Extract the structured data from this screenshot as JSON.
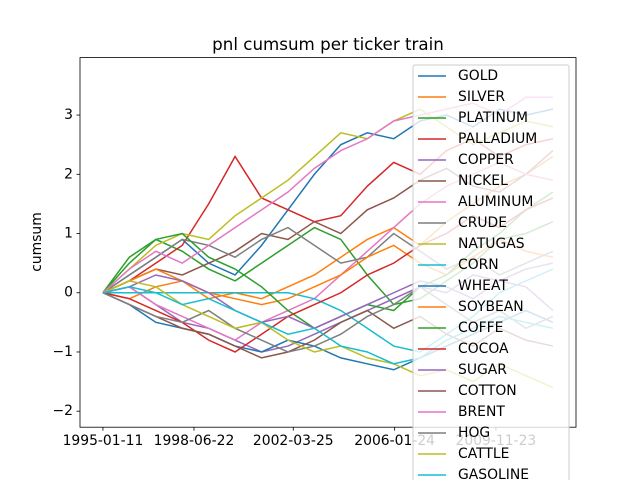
{
  "chart_data": {
    "type": "line",
    "title": "pnl cumsum per ticker train",
    "ylabel": "cumsum",
    "x": [
      "1995-01-11",
      "1996-01-11",
      "1997-01-11",
      "1998-01-11",
      "1999-01-11",
      "2000-01-11",
      "2001-01-11",
      "2002-01-11",
      "2003-01-11",
      "2004-01-11",
      "2005-01-11",
      "2006-01-11",
      "2007-01-11",
      "2008-01-11",
      "2009-01-11",
      "2010-01-11",
      "2011-01-11",
      "2012-01-20"
    ],
    "xlim": [
      "1994-02-28",
      "2012-12-04"
    ],
    "xticks": [
      "1995-01-11",
      "1998-06-22",
      "2002-03-25",
      "2006-01-24",
      "2009-11-23"
    ],
    "ylim": [
      -2.27,
      3.97
    ],
    "yticks": [
      {
        "value": -2,
        "label": "−2"
      },
      {
        "value": -1,
        "label": "−1"
      },
      0,
      1,
      2,
      3
    ],
    "legend": "upper right",
    "series": [
      {
        "name": "GOLD",
        "color": "#1f77b4",
        "values": [
          0,
          0.3,
          0.6,
          0.9,
          0.5,
          0.3,
          0.8,
          1.4,
          2.0,
          2.5,
          2.7,
          2.6,
          2.9,
          3.0,
          2.8,
          3.1,
          3.0,
          3.1
        ]
      },
      {
        "name": "SILVER",
        "color": "#ff7f0e",
        "values": [
          0,
          -0.1,
          0.1,
          0.2,
          -0.1,
          0.0,
          -0.1,
          0.1,
          0.3,
          0.6,
          0.9,
          1.1,
          0.8,
          1.2,
          1.5,
          1.8,
          2.0,
          2.3
        ]
      },
      {
        "name": "PLATINUM",
        "color": "#2ca02c",
        "values": [
          0,
          0.5,
          0.9,
          0.7,
          0.4,
          0.2,
          0.5,
          0.8,
          1.1,
          0.9,
          0.3,
          -0.2,
          -0.1,
          0.2,
          0.5,
          0.9,
          1.0,
          1.2
        ]
      },
      {
        "name": "PALLADIUM",
        "color": "#d62728",
        "values": [
          0,
          0.2,
          0.5,
          0.8,
          1.5,
          2.3,
          1.6,
          1.4,
          1.2,
          1.3,
          1.8,
          2.2,
          2.0,
          2.4,
          2.6,
          2.3,
          2.5,
          2.6
        ]
      },
      {
        "name": "COPPER",
        "color": "#9467bd",
        "values": [
          0,
          0.1,
          -0.2,
          -0.5,
          -0.6,
          -0.8,
          -1.0,
          -0.9,
          -0.7,
          -0.5,
          -0.3,
          -0.1,
          0.1,
          0.0,
          0.3,
          0.2,
          0.4,
          0.5
        ]
      },
      {
        "name": "NICKEL",
        "color": "#8c564b",
        "values": [
          0,
          0.2,
          0.4,
          0.3,
          0.5,
          0.7,
          1.0,
          0.9,
          1.2,
          1.0,
          1.4,
          1.6,
          1.9,
          2.1,
          1.8,
          1.7,
          2.0,
          2.4
        ]
      },
      {
        "name": "ALUMINUM",
        "color": "#e377c2",
        "values": [
          0,
          0.1,
          -0.2,
          -0.4,
          -0.6,
          -0.8,
          -0.5,
          -0.3,
          -0.1,
          0.3,
          0.7,
          1.1,
          1.5,
          1.8,
          2.0,
          2.2,
          2.0,
          1.9
        ]
      },
      {
        "name": "CRUDE",
        "color": "#7f7f7f",
        "values": [
          0,
          0.3,
          0.6,
          0.9,
          0.8,
          0.6,
          0.9,
          1.1,
          0.8,
          0.5,
          0.6,
          1.0,
          0.7,
          0.4,
          0.6,
          0.3,
          0.5,
          0.7
        ]
      },
      {
        "name": "NATUGAS",
        "color": "#bcbd22",
        "values": [
          0,
          0.4,
          0.8,
          1.0,
          0.9,
          1.3,
          1.6,
          1.9,
          2.3,
          2.7,
          2.6,
          2.9,
          3.1,
          2.8,
          2.5,
          2.7,
          2.9,
          2.8
        ]
      },
      {
        "name": "CORN",
        "color": "#17becf",
        "values": [
          0,
          0.0,
          0.0,
          0.0,
          0.0,
          0.0,
          0.0,
          0.0,
          -0.1,
          -0.3,
          -0.6,
          -0.9,
          -1.0,
          -0.7,
          -0.4,
          0.0,
          0.2,
          0.4
        ]
      },
      {
        "name": "WHEAT",
        "color": "#1f77b4",
        "values": [
          0,
          -0.2,
          -0.5,
          -0.6,
          -0.7,
          -0.9,
          -1.0,
          -0.8,
          -0.9,
          -1.1,
          -1.2,
          -1.3,
          -1.1,
          -0.9,
          -0.7,
          -0.5,
          -0.3,
          -0.5
        ]
      },
      {
        "name": "SOYBEAN",
        "color": "#ff7f0e",
        "values": [
          0,
          0.2,
          0.4,
          0.2,
          0.0,
          -0.1,
          -0.2,
          -0.1,
          0.1,
          0.3,
          0.6,
          0.8,
          0.5,
          0.3,
          0.6,
          0.9,
          0.7,
          0.6
        ]
      },
      {
        "name": "COFFE",
        "color": "#2ca02c",
        "values": [
          0,
          0.6,
          0.9,
          1.0,
          0.6,
          0.4,
          0.1,
          -0.3,
          -0.6,
          -0.4,
          -0.2,
          -0.3,
          0.1,
          0.3,
          0.7,
          1.0,
          1.4,
          1.7
        ]
      },
      {
        "name": "COCOA",
        "color": "#d62728",
        "values": [
          0,
          -0.1,
          -0.3,
          -0.5,
          -0.8,
          -1.0,
          -0.7,
          -0.4,
          -0.2,
          0.0,
          0.3,
          0.5,
          0.8,
          1.0,
          1.3,
          1.1,
          1.4,
          1.6
        ]
      },
      {
        "name": "SUGAR",
        "color": "#9467bd",
        "values": [
          0,
          0.1,
          0.3,
          0.2,
          0.0,
          -0.3,
          -0.5,
          -0.4,
          -0.6,
          -0.4,
          -0.2,
          0.0,
          0.2,
          0.1,
          -0.1,
          0.2,
          0.1,
          -0.3
        ]
      },
      {
        "name": "COTTON",
        "color": "#8c564b",
        "values": [
          0,
          -0.2,
          -0.4,
          -0.6,
          -0.7,
          -0.9,
          -1.1,
          -1.0,
          -0.8,
          -0.5,
          -0.3,
          -0.6,
          -0.4,
          -0.7,
          -0.9,
          -0.6,
          -0.8,
          -0.9
        ]
      },
      {
        "name": "BRENT",
        "color": "#e377c2",
        "values": [
          0,
          0.4,
          0.7,
          0.5,
          0.8,
          1.1,
          1.4,
          1.7,
          2.1,
          2.4,
          2.6,
          2.9,
          3.0,
          3.1,
          3.2,
          3.0,
          3.3,
          3.3
        ]
      },
      {
        "name": "HOG",
        "color": "#7f7f7f",
        "values": [
          0,
          -0.2,
          -0.4,
          -0.5,
          -0.3,
          -0.6,
          -0.8,
          -1.0,
          -0.9,
          -0.7,
          -0.4,
          -0.2,
          0.1,
          -0.2,
          -0.5,
          -0.3,
          -0.6,
          -0.4
        ]
      },
      {
        "name": "CATTLE",
        "color": "#bcbd22",
        "values": [
          0,
          0.2,
          0.1,
          -0.2,
          -0.4,
          -0.6,
          -0.5,
          -0.8,
          -1.0,
          -0.9,
          -1.1,
          -1.2,
          -1.4,
          -1.3,
          -1.5,
          -1.2,
          -1.4,
          -1.6
        ]
      },
      {
        "name": "GASOLINE",
        "color": "#17becf",
        "values": [
          0,
          0.1,
          0.0,
          -0.2,
          -0.1,
          -0.3,
          -0.5,
          -0.7,
          -0.6,
          -0.9,
          -1.0,
          -1.2,
          -1.1,
          -0.8,
          -0.6,
          -0.4,
          -0.5,
          -0.6
        ]
      }
    ]
  }
}
